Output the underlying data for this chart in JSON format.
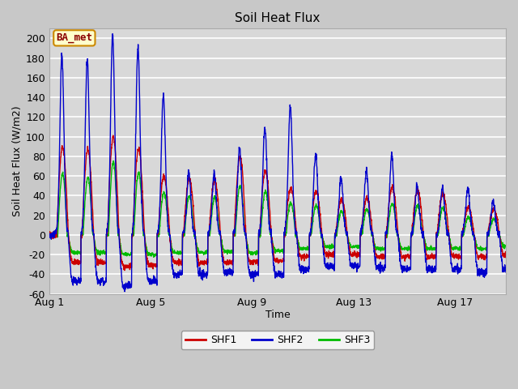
{
  "title": "Soil Heat Flux",
  "xlabel": "Time",
  "ylabel": "Soil Heat Flux (W/m2)",
  "ylim": [
    -60,
    210
  ],
  "yticks": [
    -60,
    -40,
    -20,
    0,
    20,
    40,
    60,
    80,
    100,
    120,
    140,
    160,
    180,
    200
  ],
  "xtick_labels": [
    "Aug 1",
    "Aug 5",
    "Aug 9",
    "Aug 13",
    "Aug 17"
  ],
  "xtick_positions": [
    0,
    4,
    8,
    12,
    16
  ],
  "fig_bg_color": "#c8c8c8",
  "plot_bg_color": "#d8d8d8",
  "grid_color": "#f0f0f0",
  "shf1_color": "#cc0000",
  "shf2_color": "#0000cc",
  "shf3_color": "#00bb00",
  "line_width": 1.0,
  "annotation_text": "BA_met",
  "annotation_bg": "#ffffcc",
  "annotation_border": "#cc8800",
  "n_days": 18,
  "samples_per_day": 144
}
